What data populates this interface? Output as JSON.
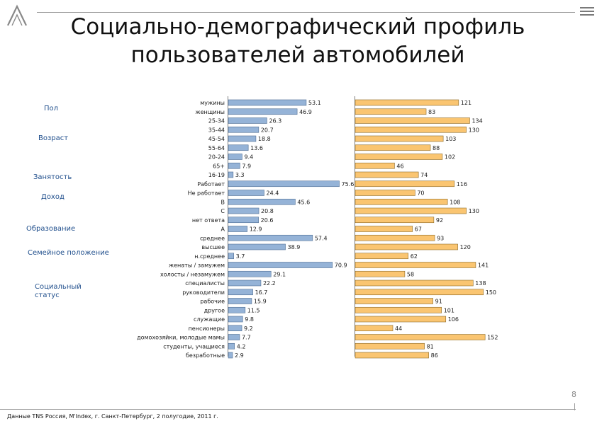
{
  "header": {
    "title_line1": "Социально-демографический профиль",
    "title_line2": "пользователей автомобилей"
  },
  "logo_icon": "a-logo-icon",
  "categories": {
    "gender": "Пол",
    "age": "Возраст",
    "employment": "Занятость",
    "income": "Доход",
    "education": "Образование",
    "marital": "Семейное положение",
    "social_line1": "Социальный",
    "social_line2": "статус"
  },
  "footer": {
    "page_number": "8",
    "source": "Данные TNS Россия, M'Index, г. Санкт-Петербург, 2 полугодие, 2011 г."
  },
  "colors": {
    "share_bar": "#95b3d7",
    "share_bar_border": "#4f6d92",
    "index_bar": "#fac571",
    "index_bar_border": "#8a6a2a",
    "category_text": "#1f4e8c"
  },
  "chart_data": [
    {
      "type": "bar",
      "orientation": "horizontal",
      "name": "share",
      "categories": [
        "мужины",
        "женщины",
        "25-34",
        "35-44",
        "45-54",
        "55-64",
        "20-24",
        "65+",
        "16-19",
        "Работает",
        "Не работает",
        "B",
        "C",
        "нет ответа",
        "A",
        "среднее",
        "высшее",
        "н.среднее",
        "женаты / замужем",
        "холосты / незамужем",
        "специалисты",
        "руководители",
        "рабочие",
        "другое",
        "служащие",
        "пенсионеры",
        "домохозяйки, молодые мамы",
        "студенты, учащиеся",
        "безработные"
      ],
      "values": [
        53.1,
        46.9,
        26.3,
        20.7,
        18.8,
        13.6,
        9.4,
        7.9,
        3.3,
        75.6,
        24.4,
        45.6,
        20.8,
        20.6,
        12.9,
        57.4,
        38.9,
        3.7,
        70.9,
        29.1,
        22.2,
        16.7,
        15.9,
        11.5,
        9.8,
        9.2,
        7.7,
        4.2,
        2.9
      ],
      "value_labels": [
        "53.1",
        "46.9",
        "26.3",
        "20.7",
        "18.8",
        "13.6",
        "9.4",
        "7.9",
        "3.3",
        "75.6",
        "24.4",
        "45.6",
        "20.8",
        "20.6",
        "12.9",
        "57.4",
        "38.9",
        "3.7",
        "70.9",
        "29.1",
        "22.2",
        "16.7",
        "15.9",
        "11.5",
        "9.8",
        "9.2",
        "7.7",
        "4.2",
        "2.9"
      ],
      "xlim": [
        0,
        80
      ]
    },
    {
      "type": "bar",
      "orientation": "horizontal",
      "name": "index",
      "categories": [
        "мужины",
        "женщины",
        "25-34",
        "35-44",
        "45-54",
        "55-64",
        "20-24",
        "65+",
        "16-19",
        "Работает",
        "Не работает",
        "B",
        "C",
        "нет ответа",
        "A",
        "среднее",
        "высшее",
        "н.среднее",
        "женаты / замужем",
        "холосты / незамужем",
        "специалисты",
        "руководители",
        "рабочие",
        "другое",
        "служащие",
        "пенсионеры",
        "домохозяйки, молодые мамы",
        "студенты, учащиеся",
        "безработные"
      ],
      "values": [
        121,
        83,
        134,
        130,
        103,
        88,
        102,
        46,
        74,
        116,
        70,
        108,
        130,
        92,
        67,
        93,
        120,
        62,
        141,
        58,
        138,
        150,
        91,
        101,
        106,
        44,
        152,
        81,
        86
      ],
      "value_labels": [
        "121",
        "83",
        "134",
        "130",
        "103",
        "88",
        "102",
        "46",
        "74",
        "116",
        "70",
        "108",
        "130",
        "92",
        "67",
        "93",
        "120",
        "62",
        "141",
        "58",
        "138",
        "150",
        "91",
        "101",
        "106",
        "44",
        "152",
        "81",
        "86"
      ],
      "xlim": [
        0,
        160
      ]
    }
  ]
}
